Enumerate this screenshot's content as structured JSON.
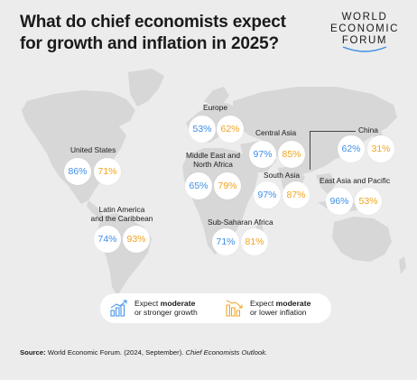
{
  "title": "What do chief economists expect for growth and inflation in 2025?",
  "logo": {
    "line1": "WORLD",
    "line2": "ECONOMIC",
    "line3": "FORUM"
  },
  "colors": {
    "growth": "#3e8ee6",
    "inflation": "#f0a31a",
    "background": "#ececec",
    "land": "#d7d7d7"
  },
  "regions": [
    {
      "id": "europe",
      "label": "Europe",
      "growth": "53%",
      "inflation": "62%"
    },
    {
      "id": "united-states",
      "label": "United States",
      "growth": "86%",
      "inflation": "71%"
    },
    {
      "id": "central-asia",
      "label": "Central Asia",
      "growth": "97%",
      "inflation": "85%"
    },
    {
      "id": "china",
      "label": "China",
      "growth": "62%",
      "inflation": "31%"
    },
    {
      "id": "mena",
      "label_line1": "Middle East and",
      "label_line2": "North Africa",
      "growth": "65%",
      "inflation": "79%"
    },
    {
      "id": "south-asia",
      "label": "South Asia",
      "growth": "97%",
      "inflation": "87%"
    },
    {
      "id": "east-asia-pacific",
      "label": "East Asia and Pacific",
      "growth": "96%",
      "inflation": "53%"
    },
    {
      "id": "latin-america",
      "label_line1": "Latin America",
      "label_line2": "and the Caribbean",
      "growth": "74%",
      "inflation": "93%"
    },
    {
      "id": "sub-saharan-africa",
      "label": "Sub-Saharan Africa",
      "growth": "71%",
      "inflation": "81%"
    }
  ],
  "legend": {
    "growth": {
      "icon": "growth-bars-icon",
      "line1_prefix": "Expect ",
      "line1_bold": "moderate",
      "line2": "or stronger growth"
    },
    "inflation": {
      "icon": "inflation-bars-icon",
      "line1_prefix": "Expect ",
      "line1_bold": "moderate",
      "line2": "or lower inflation"
    }
  },
  "source": {
    "label": "Source:",
    "text": " World Economic Forum. (2024, September). ",
    "italic": "Chief Economists Outlook."
  }
}
